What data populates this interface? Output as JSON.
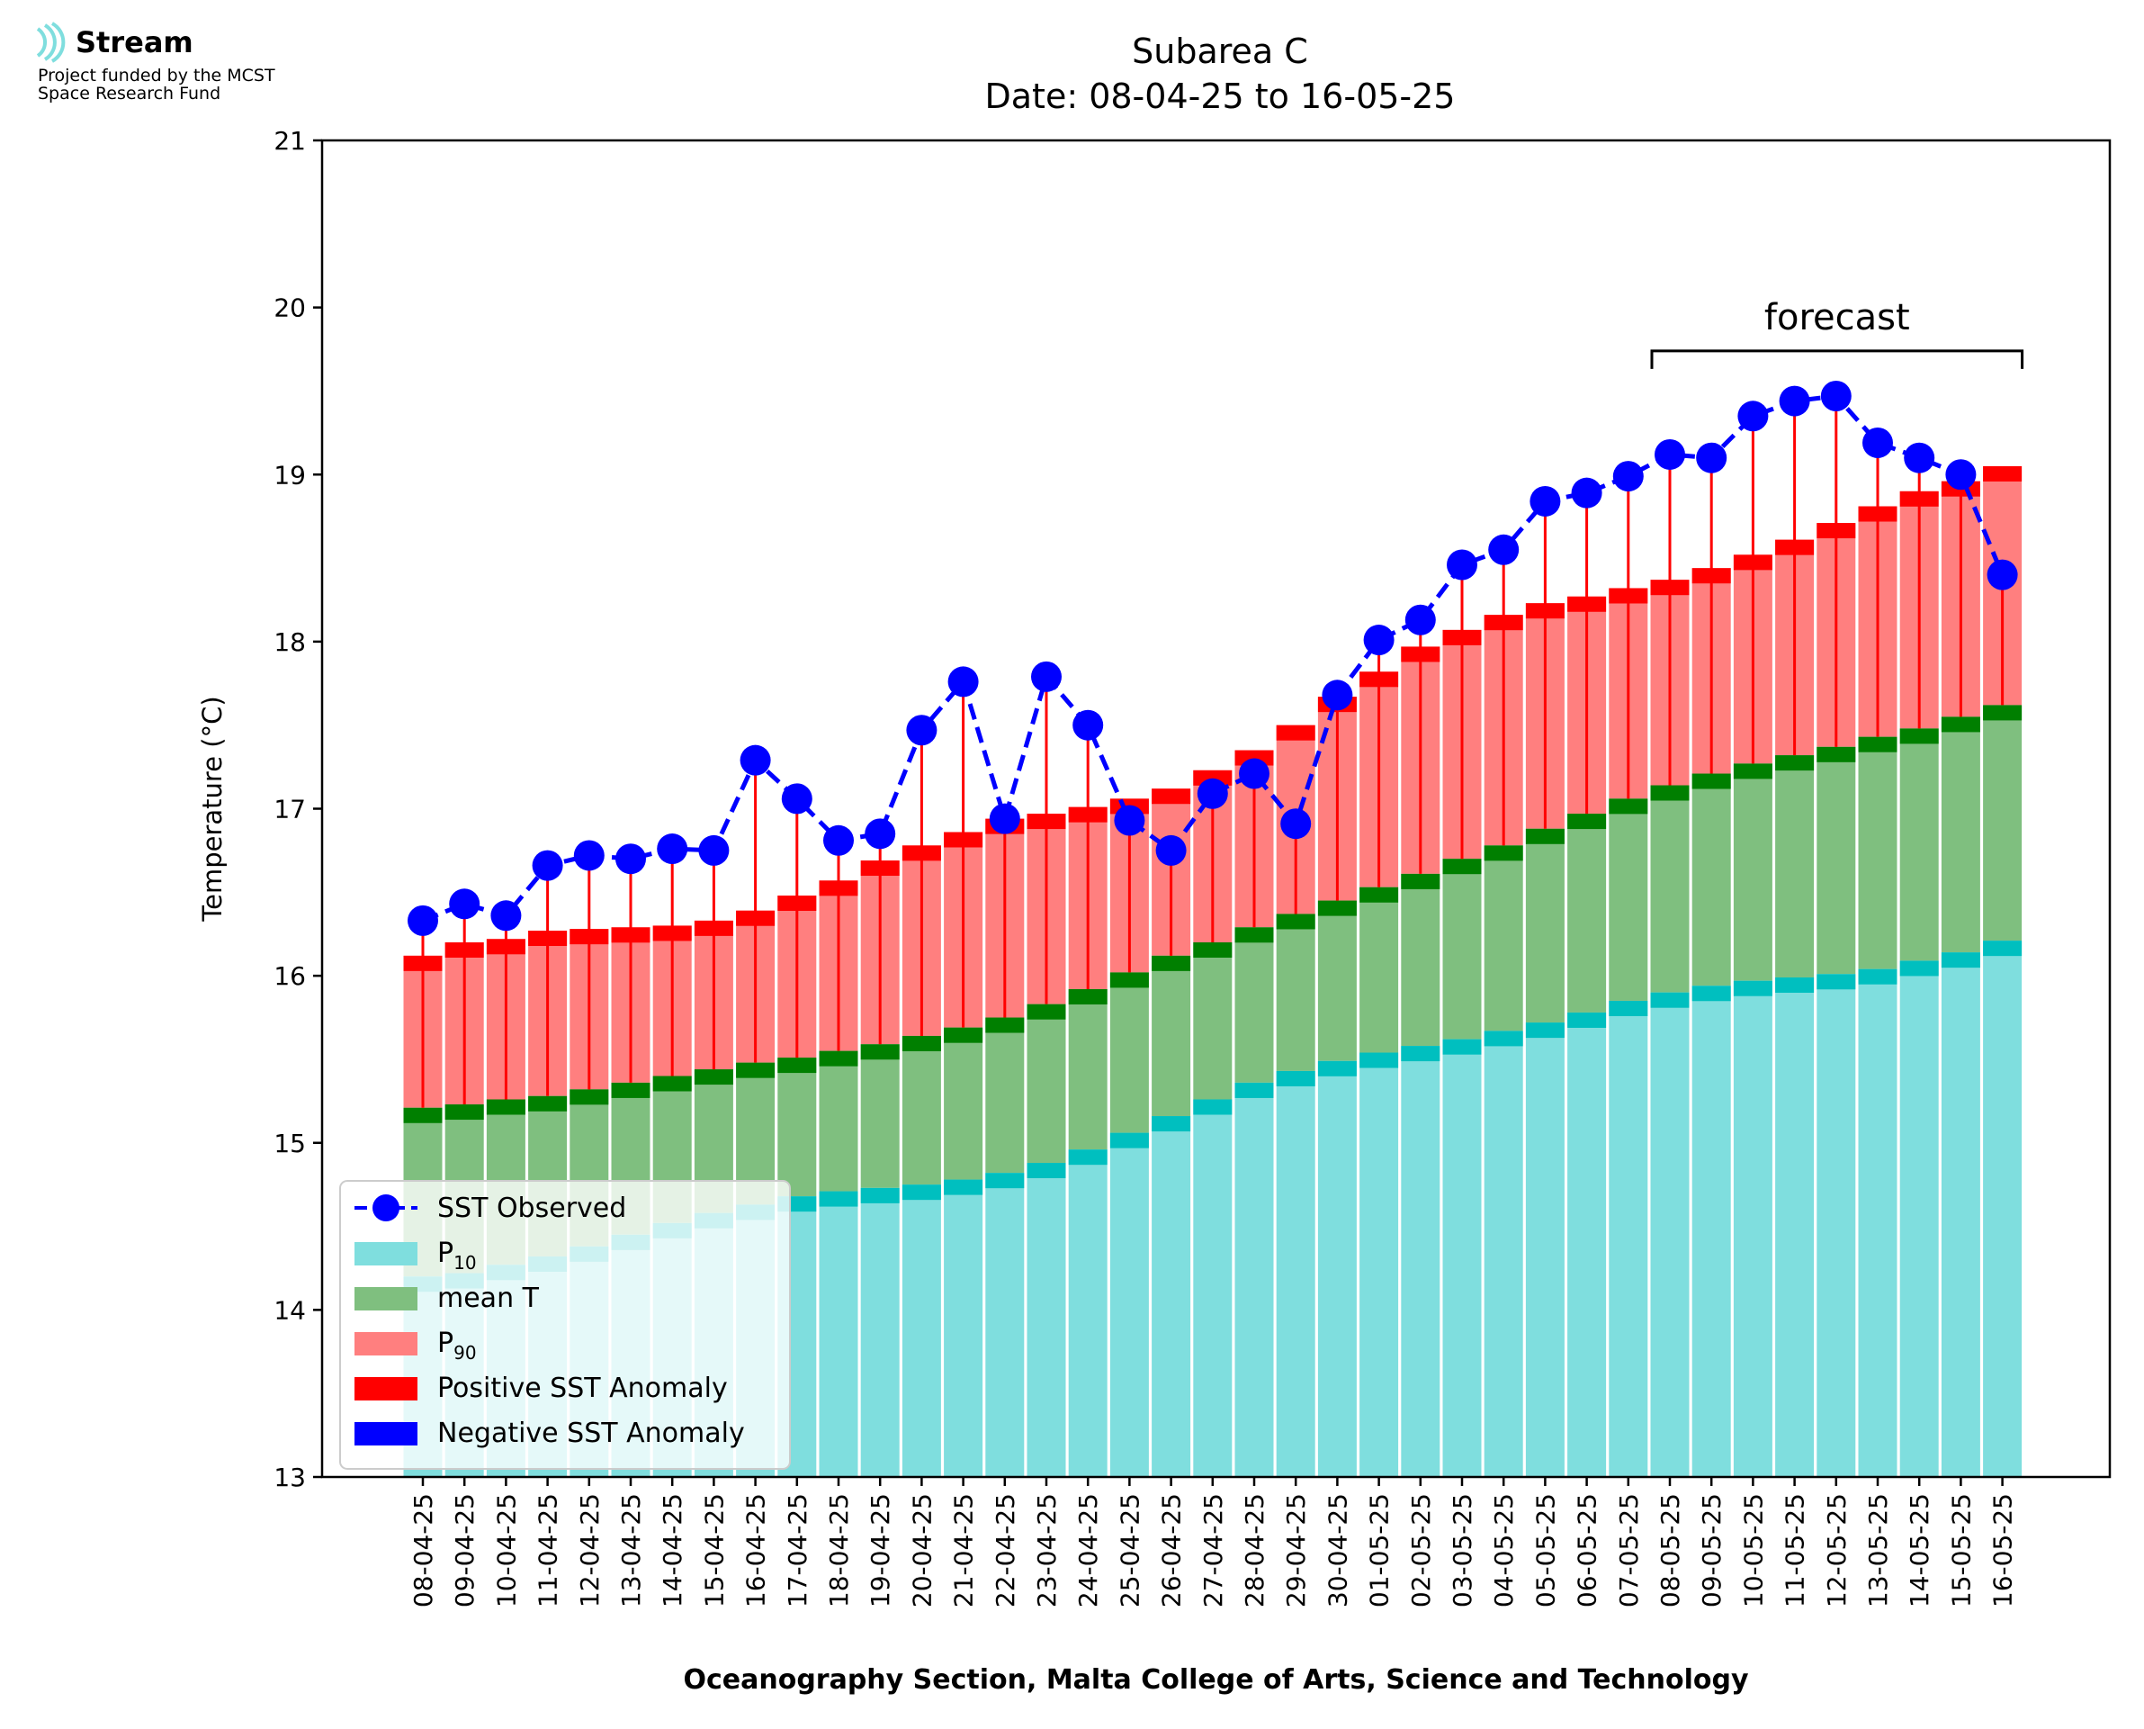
{
  "logo": {
    "name": "Stream",
    "line1": "Project funded by the MCST",
    "line2": "Space Research Fund"
  },
  "chart_data": {
    "type": "bar",
    "title": "Subarea C",
    "subtitle": "Date: 08-04-25 to 16-05-25",
    "xlabel": "Oceanography Section, Malta College of Arts, Science and Technology",
    "ylabel": "Temperature (°C)",
    "ylim": [
      13,
      21
    ],
    "yticks": [
      "13",
      "14",
      "15",
      "16",
      "17",
      "18",
      "19",
      "20",
      "21"
    ],
    "grid": false,
    "legend_position": "lower-left",
    "annotation": "forecast",
    "forecast_range": [
      "08-05-25",
      "16-05-25"
    ],
    "categories": [
      "08-04-25",
      "09-04-25",
      "10-04-25",
      "11-04-25",
      "12-04-25",
      "13-04-25",
      "14-04-25",
      "15-04-25",
      "16-04-25",
      "17-04-25",
      "18-04-25",
      "19-04-25",
      "20-04-25",
      "21-04-25",
      "22-04-25",
      "23-04-25",
      "24-04-25",
      "25-04-25",
      "26-04-25",
      "27-04-25",
      "28-04-25",
      "29-04-25",
      "30-04-25",
      "01-05-25",
      "02-05-25",
      "03-05-25",
      "04-05-25",
      "05-05-25",
      "06-05-25",
      "07-05-25",
      "08-05-25",
      "09-05-25",
      "10-05-25",
      "11-05-25",
      "12-05-25",
      "13-05-25",
      "14-05-25",
      "15-05-25",
      "16-05-25"
    ],
    "series": [
      {
        "name": "P10",
        "color": "#7fdede",
        "values": [
          14.2,
          14.22,
          14.27,
          14.32,
          14.38,
          14.45,
          14.52,
          14.58,
          14.63,
          14.68,
          14.71,
          14.73,
          14.75,
          14.78,
          14.82,
          14.88,
          14.96,
          15.06,
          15.16,
          15.26,
          15.36,
          15.43,
          15.49,
          15.54,
          15.58,
          15.62,
          15.67,
          15.72,
          15.78,
          15.85,
          15.9,
          15.94,
          15.97,
          15.99,
          16.01,
          16.04,
          16.09,
          16.14,
          16.21
        ]
      },
      {
        "name": "mean T",
        "color": "#7fbf7f",
        "values": [
          15.21,
          15.23,
          15.26,
          15.28,
          15.32,
          15.36,
          15.4,
          15.44,
          15.48,
          15.51,
          15.55,
          15.59,
          15.64,
          15.69,
          15.75,
          15.83,
          15.92,
          16.02,
          16.12,
          16.2,
          16.29,
          16.37,
          16.45,
          16.53,
          16.61,
          16.7,
          16.78,
          16.88,
          16.97,
          17.06,
          17.14,
          17.21,
          17.27,
          17.32,
          17.37,
          17.43,
          17.48,
          17.55,
          17.62
        ]
      },
      {
        "name": "P90",
        "color": "#ff7f7f",
        "values": [
          16.12,
          16.2,
          16.22,
          16.27,
          16.28,
          16.29,
          16.3,
          16.33,
          16.39,
          16.48,
          16.57,
          16.69,
          16.78,
          16.86,
          16.94,
          16.97,
          17.01,
          17.06,
          17.12,
          17.23,
          17.35,
          17.5,
          17.67,
          17.82,
          17.97,
          18.07,
          18.16,
          18.23,
          18.27,
          18.32,
          18.37,
          18.44,
          18.52,
          18.61,
          18.71,
          18.81,
          18.9,
          18.96,
          19.05
        ]
      },
      {
        "name": "SST Observed",
        "color": "#0000ff",
        "values": [
          16.33,
          16.43,
          16.36,
          16.66,
          16.72,
          16.7,
          16.76,
          16.75,
          17.29,
          17.06,
          16.81,
          16.85,
          17.47,
          17.76,
          16.94,
          17.79,
          17.5,
          16.93,
          16.75,
          17.09,
          17.21,
          16.91,
          17.68,
          18.01,
          18.13,
          18.46,
          18.55,
          18.84,
          18.89,
          18.99,
          19.12,
          19.1,
          19.35,
          19.44,
          19.47,
          19.19,
          19.1,
          19.0,
          18.4
        ]
      }
    ],
    "colors": {
      "p10_cap": "#00bfbf",
      "mean_cap": "#007f00",
      "p90_cap": "#ff0000",
      "positive_anomaly": "#ff0000",
      "negative_anomaly": "#0000ff"
    },
    "legend": [
      "SST Observed",
      "P10",
      "mean T",
      "P90",
      "Positive SST Anomaly",
      "Negative SST Anomaly"
    ]
  }
}
